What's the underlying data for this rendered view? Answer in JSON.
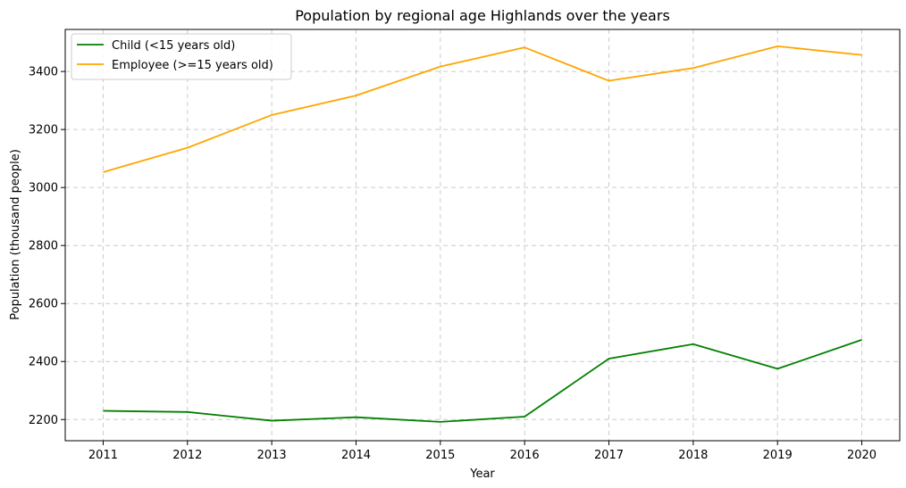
{
  "chart_data": {
    "type": "line",
    "title": "Population by regional age Highlands over the years",
    "xlabel": "Year",
    "ylabel": "Population (thousand people)",
    "x": [
      "2011",
      "2012",
      "2013",
      "2014",
      "2015",
      "2016",
      "2017",
      "2018",
      "2019",
      "2020"
    ],
    "xlim": [
      2010.55,
      2020.45
    ],
    "ylim": [
      2127,
      3545
    ],
    "yticks": [
      "2200",
      "2400",
      "2600",
      "2800",
      "3000",
      "3200",
      "3400"
    ],
    "grid": true,
    "legend_position": "top-left",
    "series": [
      {
        "name": "Child (<15 years old)",
        "color": "#008000",
        "values": [
          2230,
          2226,
          2196,
          2208,
          2192,
          2210,
          2410,
          2460,
          2375,
          2475
        ]
      },
      {
        "name": "Employee (>=15 years old)",
        "color": "#FFA500",
        "values": [
          3053,
          3137,
          3250,
          3317,
          3417,
          3483,
          3368,
          3412,
          3487,
          3457
        ]
      }
    ]
  }
}
